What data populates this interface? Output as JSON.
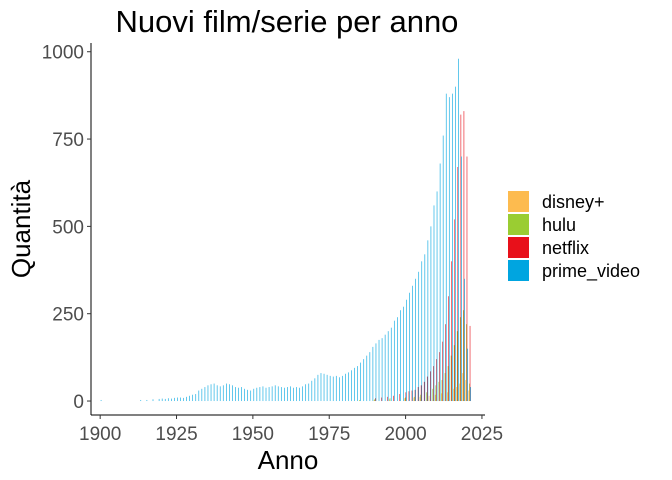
{
  "chart_data": {
    "type": "bar",
    "title": "Nuovi film/serie per anno",
    "xlabel": "Anno",
    "ylabel": "Quantità",
    "xlim": [
      1897,
      2026
    ],
    "ylim": [
      -40,
      1025
    ],
    "xticks": [
      1900,
      1925,
      1950,
      1975,
      2000,
      2025
    ],
    "yticks": [
      0,
      250,
      500,
      750,
      1000
    ],
    "grid": false,
    "legend_position": "right",
    "series": [
      {
        "name": "disney+",
        "color": "#FDBB4F",
        "offset": -0.3,
        "points": [
          [
            1990,
            3
          ],
          [
            1995,
            5
          ],
          [
            2000,
            8
          ],
          [
            2003,
            10
          ],
          [
            2005,
            12
          ],
          [
            2008,
            15
          ],
          [
            2010,
            18
          ],
          [
            2012,
            22
          ],
          [
            2014,
            25
          ],
          [
            2016,
            35
          ],
          [
            2017,
            40
          ],
          [
            2018,
            50
          ],
          [
            2019,
            80
          ],
          [
            2020,
            60
          ],
          [
            2021,
            30
          ]
        ]
      },
      {
        "name": "hulu",
        "color": "#9ACD32",
        "offset": -0.1,
        "points": [
          [
            1985,
            3
          ],
          [
            1990,
            5
          ],
          [
            1995,
            8
          ],
          [
            2000,
            10
          ],
          [
            2003,
            12
          ],
          [
            2005,
            18
          ],
          [
            2007,
            25
          ],
          [
            2009,
            35
          ],
          [
            2010,
            45
          ],
          [
            2011,
            55
          ],
          [
            2012,
            60
          ],
          [
            2013,
            80
          ],
          [
            2014,
            100
          ],
          [
            2015,
            130
          ],
          [
            2016,
            160
          ],
          [
            2017,
            200
          ],
          [
            2018,
            240
          ],
          [
            2019,
            260
          ],
          [
            2020,
            220
          ],
          [
            2021,
            50
          ]
        ]
      },
      {
        "name": "netflix",
        "color": "#E8101A",
        "offset": 0.1,
        "points": [
          [
            1990,
            8
          ],
          [
            1992,
            10
          ],
          [
            1994,
            12
          ],
          [
            1996,
            15
          ],
          [
            1998,
            20
          ],
          [
            2000,
            25
          ],
          [
            2001,
            28
          ],
          [
            2002,
            30
          ],
          [
            2003,
            32
          ],
          [
            2004,
            40
          ],
          [
            2005,
            45
          ],
          [
            2006,
            55
          ],
          [
            2007,
            70
          ],
          [
            2008,
            85
          ],
          [
            2009,
            100
          ],
          [
            2010,
            120
          ],
          [
            2011,
            140
          ],
          [
            2012,
            170
          ],
          [
            2013,
            220
          ],
          [
            2014,
            300
          ],
          [
            2015,
            400
          ],
          [
            2016,
            520
          ],
          [
            2017,
            670
          ],
          [
            2018,
            820
          ],
          [
            2019,
            830
          ],
          [
            2020,
            700
          ],
          [
            2021,
            215
          ]
        ]
      },
      {
        "name": "prime_video",
        "color": "#00A5E0",
        "offset": 0.3,
        "points": [
          [
            1900,
            3
          ],
          [
            1913,
            3
          ],
          [
            1915,
            3
          ],
          [
            1917,
            5
          ],
          [
            1919,
            6
          ],
          [
            1920,
            7
          ],
          [
            1921,
            6
          ],
          [
            1922,
            8
          ],
          [
            1923,
            7
          ],
          [
            1924,
            9
          ],
          [
            1925,
            10
          ],
          [
            1926,
            10
          ],
          [
            1927,
            9
          ],
          [
            1928,
            12
          ],
          [
            1929,
            15
          ],
          [
            1930,
            18
          ],
          [
            1931,
            20
          ],
          [
            1932,
            30
          ],
          [
            1933,
            35
          ],
          [
            1934,
            40
          ],
          [
            1935,
            45
          ],
          [
            1936,
            48
          ],
          [
            1937,
            50
          ],
          [
            1938,
            45
          ],
          [
            1939,
            42
          ],
          [
            1940,
            45
          ],
          [
            1941,
            50
          ],
          [
            1942,
            48
          ],
          [
            1943,
            45
          ],
          [
            1944,
            40
          ],
          [
            1945,
            38
          ],
          [
            1946,
            40
          ],
          [
            1947,
            35
          ],
          [
            1948,
            32
          ],
          [
            1949,
            30
          ],
          [
            1950,
            35
          ],
          [
            1951,
            38
          ],
          [
            1952,
            40
          ],
          [
            1953,
            42
          ],
          [
            1954,
            38
          ],
          [
            1955,
            40
          ],
          [
            1956,
            42
          ],
          [
            1957,
            45
          ],
          [
            1958,
            42
          ],
          [
            1959,
            40
          ],
          [
            1960,
            38
          ],
          [
            1961,
            40
          ],
          [
            1962,
            42
          ],
          [
            1963,
            38
          ],
          [
            1964,
            40
          ],
          [
            1965,
            38
          ],
          [
            1966,
            42
          ],
          [
            1967,
            48
          ],
          [
            1968,
            50
          ],
          [
            1969,
            58
          ],
          [
            1970,
            65
          ],
          [
            1971,
            75
          ],
          [
            1972,
            80
          ],
          [
            1973,
            78
          ],
          [
            1974,
            75
          ],
          [
            1975,
            72
          ],
          [
            1976,
            70
          ],
          [
            1977,
            72
          ],
          [
            1978,
            68
          ],
          [
            1979,
            72
          ],
          [
            1980,
            78
          ],
          [
            1981,
            82
          ],
          [
            1982,
            88
          ],
          [
            1983,
            95
          ],
          [
            1984,
            100
          ],
          [
            1985,
            110
          ],
          [
            1986,
            120
          ],
          [
            1987,
            130
          ],
          [
            1988,
            140
          ],
          [
            1989,
            155
          ],
          [
            1990,
            165
          ],
          [
            1991,
            175
          ],
          [
            1992,
            180
          ],
          [
            1993,
            190
          ],
          [
            1994,
            200
          ],
          [
            1995,
            210
          ],
          [
            1996,
            230
          ],
          [
            1997,
            240
          ],
          [
            1998,
            260
          ],
          [
            1999,
            270
          ],
          [
            2000,
            290
          ],
          [
            2001,
            310
          ],
          [
            2002,
            330
          ],
          [
            2003,
            350
          ],
          [
            2004,
            370
          ],
          [
            2005,
            400
          ],
          [
            2006,
            420
          ],
          [
            2007,
            460
          ],
          [
            2008,
            500
          ],
          [
            2009,
            560
          ],
          [
            2010,
            600
          ],
          [
            2011,
            680
          ],
          [
            2012,
            760
          ],
          [
            2013,
            880
          ],
          [
            2014,
            870
          ],
          [
            2015,
            880
          ],
          [
            2016,
            900
          ],
          [
            2017,
            980
          ],
          [
            2018,
            700
          ],
          [
            2019,
            350
          ],
          [
            2020,
            150
          ],
          [
            2021,
            40
          ]
        ]
      }
    ]
  }
}
